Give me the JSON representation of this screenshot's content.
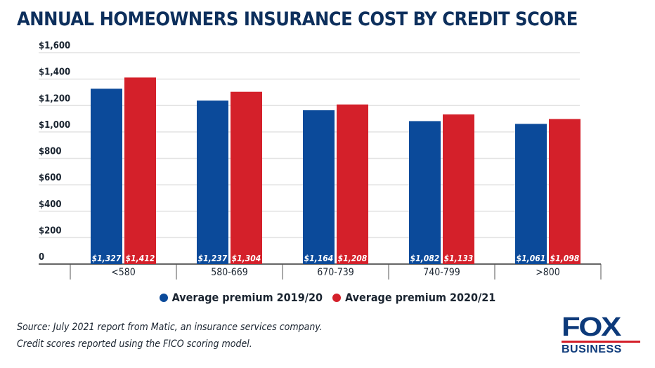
{
  "chart_data": {
    "type": "bar",
    "title": "ANNUAL HOMEOWNERS INSURANCE COST BY CREDIT SCORE",
    "categories": [
      "<580",
      "580-669",
      "670-739",
      "740-799",
      ">800"
    ],
    "series": [
      {
        "name": "Average premium 2019/20",
        "color": "#0b4a9a",
        "values": [
          1327,
          1237,
          1164,
          1082,
          1061
        ],
        "labels": [
          "$1,327",
          "$1,237",
          "$1,164",
          "$1,082",
          "$1,061"
        ]
      },
      {
        "name": "Average premium 2020/21",
        "color": "#d4202a",
        "values": [
          1412,
          1304,
          1208,
          1133,
          1098
        ],
        "labels": [
          "$1,412",
          "$1,304",
          "$1,208",
          "$1,133",
          "$1,098"
        ]
      }
    ],
    "ylim": [
      0,
      1600
    ],
    "yticks": [
      0,
      200,
      400,
      600,
      800,
      1000,
      1200,
      1400,
      1600
    ],
    "ytick_labels": [
      "0",
      "$200",
      "$400",
      "$600",
      "$800",
      "$1,000",
      "$1,200",
      "$1,400",
      "$1,600"
    ],
    "xlabel": "",
    "ylabel": "",
    "grid": true,
    "legend": "bottom"
  },
  "footer": {
    "source": "Source: July 2021 report from Matic, an insurance services company.",
    "note": "Credit scores reported using the FICO scoring model.",
    "logo_top": "FOX",
    "logo_bottom": "BUSINESS"
  }
}
